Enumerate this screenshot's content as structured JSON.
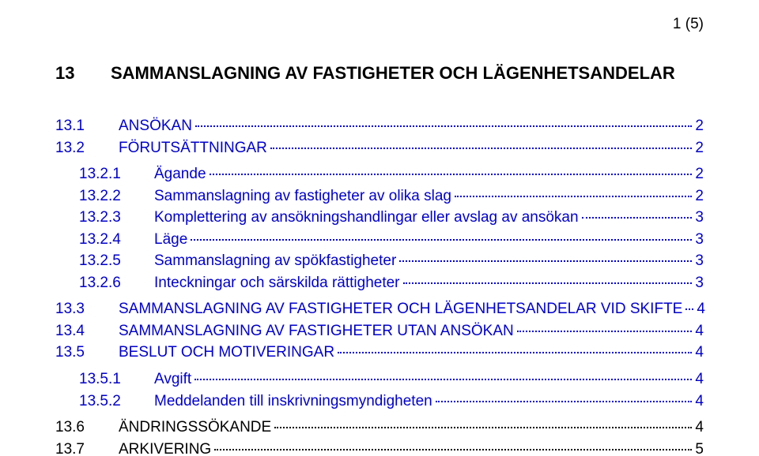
{
  "page_indicator": "1 (5)",
  "heading": {
    "num": "13",
    "text": "SAMMANSLAGNING AV FASTIGHETER OCH LÄGENHETSANDELAR"
  },
  "colors": {
    "text": "#000000",
    "link": "#0000cc",
    "background": "#ffffff",
    "leader": "#000000",
    "leader_link": "#0000cc"
  },
  "typography": {
    "font_family": "Arial",
    "body_fontsize": 19,
    "title_fontsize": 22,
    "title_weight": "bold",
    "line_height": 1.45
  },
  "toc": [
    {
      "level": 1,
      "num": "13.1",
      "label": "ANSÖKAN",
      "page": "2",
      "link": true,
      "gap_before": false
    },
    {
      "level": 1,
      "num": "13.2",
      "label": "FÖRUTSÄTTNINGAR",
      "page": "2",
      "link": true,
      "gap_before": false
    },
    {
      "level": 2,
      "num": "13.2.1",
      "label": "Ägande",
      "page": "2",
      "link": true,
      "gap_before": true
    },
    {
      "level": 2,
      "num": "13.2.2",
      "label": "Sammanslagning av fastigheter av olika slag",
      "page": "2",
      "link": true,
      "gap_before": false
    },
    {
      "level": 2,
      "num": "13.2.3",
      "label": "Komplettering av ansökningshandlingar eller avslag av ansökan",
      "page": "3",
      "link": true,
      "gap_before": false
    },
    {
      "level": 2,
      "num": "13.2.4",
      "label": "Läge",
      "page": "3",
      "link": true,
      "gap_before": false
    },
    {
      "level": 2,
      "num": "13.2.5",
      "label": "Sammanslagning av spökfastigheter",
      "page": "3",
      "link": true,
      "gap_before": false
    },
    {
      "level": 2,
      "num": "13.2.6",
      "label": "Inteckningar och särskilda rättigheter",
      "page": "3",
      "link": true,
      "gap_before": false
    },
    {
      "level": 1,
      "num": "13.3",
      "label": "SAMMANSLAGNING AV FASTIGHETER OCH LÄGENHETSANDELAR VID SKIFTE",
      "page": "4",
      "link": true,
      "gap_before": true
    },
    {
      "level": 1,
      "num": "13.4",
      "label": "SAMMANSLAGNING AV FASTIGHETER UTAN ANSÖKAN",
      "page": "4",
      "link": true,
      "gap_before": false
    },
    {
      "level": 1,
      "num": "13.5",
      "label": "BESLUT OCH MOTIVERINGAR",
      "page": "4",
      "link": true,
      "gap_before": false
    },
    {
      "level": 2,
      "num": "13.5.1",
      "label": "Avgift",
      "page": "4",
      "link": true,
      "gap_before": true
    },
    {
      "level": 2,
      "num": "13.5.2",
      "label": "Meddelanden till inskrivningsmyndigheten",
      "page": "4",
      "link": true,
      "gap_before": false
    },
    {
      "level": 1,
      "num": "13.6",
      "label": "ÄNDRINGSSÖKANDE",
      "page": "4",
      "link": false,
      "gap_before": true
    },
    {
      "level": 1,
      "num": "13.7",
      "label": "ARKIVERING",
      "page": "5",
      "link": false,
      "gap_before": false
    }
  ]
}
